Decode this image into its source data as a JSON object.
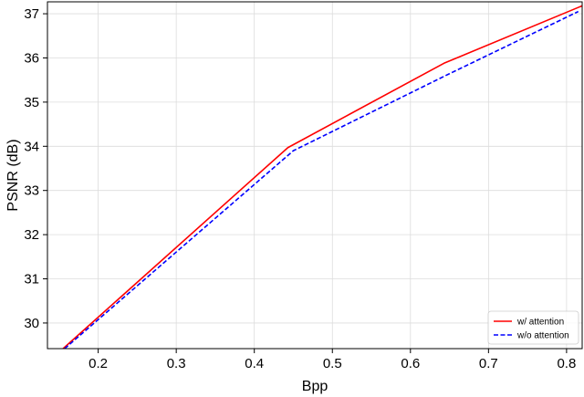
{
  "chart_data": {
    "type": "line",
    "title": "",
    "xlabel": "Bpp",
    "ylabel": "PSNR (dB)",
    "xlim": [
      0.135,
      0.82
    ],
    "ylim": [
      29.42,
      37.27
    ],
    "xticks": [
      0.2,
      0.3,
      0.4,
      0.5,
      0.6,
      0.7,
      0.8
    ],
    "xtick_labels": [
      "0.2",
      "0.3",
      "0.4",
      "0.5",
      "0.6",
      "0.7",
      "0.8"
    ],
    "yticks": [
      30,
      31,
      32,
      33,
      34,
      35,
      36,
      37
    ],
    "ytick_labels": [
      "30",
      "31",
      "32",
      "33",
      "34",
      "35",
      "36",
      "37"
    ],
    "grid": true,
    "legend_position": "lower-right",
    "series": [
      {
        "name": "w/ attention",
        "color": "#ff0000",
        "style": "solid",
        "x": [
          0.155,
          0.443,
          0.643,
          0.82
        ],
        "y": [
          29.42,
          33.97,
          35.88,
          37.18
        ]
      },
      {
        "name": "w/o attention",
        "color": "#0000ff",
        "style": "dashed",
        "x": [
          0.157,
          0.45,
          0.645,
          0.815
        ],
        "y": [
          29.42,
          33.9,
          35.6,
          37.05
        ]
      }
    ]
  }
}
